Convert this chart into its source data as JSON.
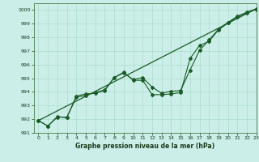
{
  "xlabel": "Graphe pression niveau de la mer (hPa)",
  "xlim": [
    -0.5,
    23
  ],
  "ylim": [
    991,
    1000.5
  ],
  "yticks": [
    991,
    992,
    993,
    994,
    995,
    996,
    997,
    998,
    999,
    1000
  ],
  "xticks": [
    0,
    1,
    2,
    3,
    4,
    5,
    6,
    7,
    8,
    9,
    10,
    11,
    12,
    13,
    14,
    15,
    16,
    17,
    18,
    19,
    20,
    21,
    22,
    23
  ],
  "bg_color": "#cceee8",
  "grid_color": "#aaddcc",
  "line_color": "#1a5c28",
  "trend_x": [
    0,
    23
  ],
  "trend_y": [
    991.9,
    1000.1
  ],
  "series1_x": [
    0,
    1,
    2,
    3,
    4,
    5,
    6,
    7,
    8,
    9,
    10,
    11,
    12,
    13,
    14,
    15,
    16,
    17,
    18,
    19,
    20,
    21,
    22,
    23
  ],
  "series1_y": [
    991.9,
    991.5,
    992.2,
    992.1,
    993.7,
    993.85,
    993.9,
    994.1,
    995.05,
    995.4,
    994.9,
    995.05,
    994.35,
    993.9,
    994.05,
    994.1,
    995.6,
    997.05,
    997.8,
    998.6,
    999.1,
    999.55,
    999.85,
    1000.1
  ],
  "series2_x": [
    0,
    1,
    2,
    3,
    4,
    5,
    6,
    7,
    8,
    9,
    10,
    11,
    12,
    13,
    14,
    15,
    16,
    17,
    18,
    19,
    20,
    21,
    22,
    23
  ],
  "series2_y": [
    991.9,
    991.5,
    992.15,
    992.15,
    993.6,
    993.75,
    993.95,
    994.15,
    995.05,
    995.45,
    994.85,
    994.85,
    993.8,
    993.8,
    993.85,
    993.95,
    996.45,
    997.4,
    997.7,
    998.55,
    999.05,
    999.5,
    999.8,
    1000.05
  ]
}
